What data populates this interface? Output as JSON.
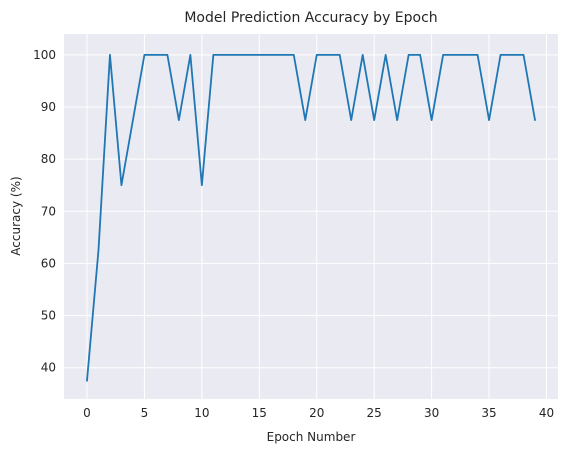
{
  "chart_data": {
    "type": "line",
    "title": "Model Prediction Accuracy by Epoch",
    "xlabel": "Epoch Number",
    "ylabel": "Accuracy (%)",
    "xlim": [
      -2,
      41
    ],
    "ylim": [
      34,
      104
    ],
    "xticks": [
      0,
      5,
      10,
      15,
      20,
      25,
      30,
      35,
      40
    ],
    "yticks": [
      40,
      50,
      60,
      70,
      80,
      90,
      100
    ],
    "grid": true,
    "colors": {
      "line": "#1f77b4",
      "plot_background": "#eaeaf2",
      "grid": "#ffffff",
      "text": "#262626"
    },
    "series": [
      {
        "x": [
          0,
          1,
          2,
          3,
          4,
          5,
          6,
          7,
          8,
          9,
          10,
          11,
          12,
          13,
          14,
          15,
          16,
          17,
          18,
          19,
          20,
          21,
          22,
          23,
          24,
          25,
          26,
          27,
          28,
          29,
          30,
          31,
          32,
          33,
          34,
          35,
          36,
          37,
          38,
          39
        ],
        "values": [
          37.5,
          62.5,
          100,
          75,
          87.5,
          100,
          100,
          100,
          87.5,
          100,
          75,
          100,
          100,
          100,
          100,
          100,
          100,
          100,
          100,
          87.5,
          100,
          100,
          100,
          87.5,
          100,
          87.5,
          100,
          87.5,
          100,
          100,
          87.5,
          100,
          100,
          100,
          100,
          87.5,
          100,
          100,
          100,
          87.5
        ]
      }
    ]
  }
}
